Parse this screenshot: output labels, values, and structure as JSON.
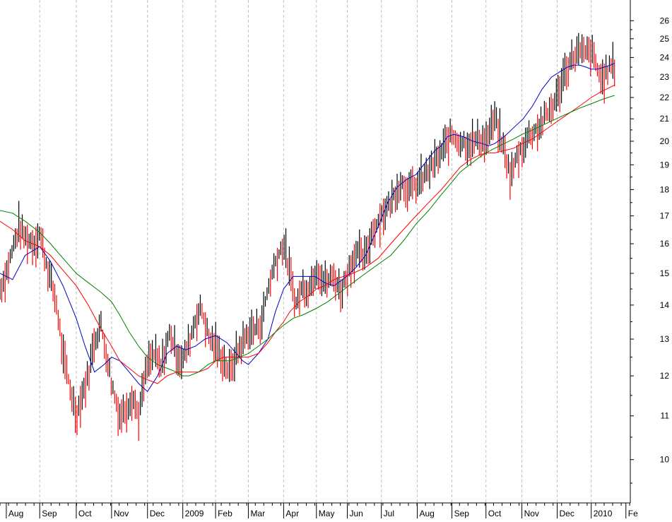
{
  "chart_data": {
    "type": "line",
    "title": "",
    "xlabel": "",
    "ylabel": "",
    "scale": "log",
    "ylim": [
      9.1,
      27.2
    ],
    "y_ticks": [
      10,
      11,
      12,
      13,
      14,
      15,
      16,
      17,
      18,
      19,
      20,
      21,
      22,
      23,
      24,
      25,
      26
    ],
    "x_ticks": [
      "Aug",
      "Sep",
      "Oct",
      "Nov",
      "Dec",
      "2009",
      "Feb",
      "Mar",
      "Apr",
      "May",
      "Jun",
      "Jul",
      "Aug",
      "Sep",
      "Oct",
      "Nov",
      "Dec",
      "2010",
      "Fe"
    ],
    "x_ticks_frac": [
      0.01,
      0.063,
      0.121,
      0.177,
      0.234,
      0.29,
      0.342,
      0.394,
      0.45,
      0.502,
      0.551,
      0.605,
      0.662,
      0.717,
      0.771,
      0.828,
      0.884,
      0.938,
      0.993
    ],
    "grid": "vertical dashed",
    "legend": "none",
    "colors": {
      "up_bar": "#000000",
      "down_bar": "#ff0000",
      "ma_short": "#0000cc",
      "ma_mid": "#ff0000",
      "ma_long": "#008000",
      "grid": "#c0c0c0"
    },
    "series": [
      {
        "kind": "price-close",
        "color": "#000000",
        "x": [
          0.0,
          0.01,
          0.02,
          0.03,
          0.04,
          0.055,
          0.063,
          0.075,
          0.09,
          0.1,
          0.11,
          0.121,
          0.13,
          0.14,
          0.15,
          0.16,
          0.17,
          0.177,
          0.19,
          0.2,
          0.21,
          0.22,
          0.234,
          0.245,
          0.255,
          0.27,
          0.28,
          0.29,
          0.3,
          0.31,
          0.32,
          0.33,
          0.342,
          0.355,
          0.365,
          0.375,
          0.385,
          0.394,
          0.405,
          0.415,
          0.425,
          0.437,
          0.45,
          0.46,
          0.47,
          0.48,
          0.49,
          0.502,
          0.515,
          0.53,
          0.541,
          0.551,
          0.565,
          0.58,
          0.59,
          0.605,
          0.62,
          0.635,
          0.65,
          0.662,
          0.675,
          0.69,
          0.7,
          0.71,
          0.717,
          0.73,
          0.745,
          0.76,
          0.771,
          0.785,
          0.8,
          0.81,
          0.82,
          0.828,
          0.84,
          0.855,
          0.87,
          0.884,
          0.895,
          0.905,
          0.915,
          0.925,
          0.938,
          0.948,
          0.955,
          0.965,
          0.97,
          0.975
        ],
        "values": [
          14.5,
          15.0,
          15.8,
          16.6,
          16.2,
          16.0,
          16.4,
          15.2,
          14.0,
          12.5,
          11.8,
          11.0,
          11.5,
          12.0,
          13.0,
          13.4,
          12.5,
          11.8,
          11.0,
          11.2,
          11.5,
          11.0,
          12.3,
          12.6,
          12.2,
          13.2,
          12.6,
          12.4,
          12.9,
          13.6,
          13.9,
          13.1,
          12.8,
          12.4,
          12.1,
          12.6,
          12.9,
          13.2,
          13.3,
          13.5,
          14.5,
          15.4,
          16.0,
          15.0,
          14.0,
          14.6,
          14.5,
          15.2,
          14.7,
          14.9,
          14.4,
          15.0,
          15.7,
          15.5,
          16.4,
          17.0,
          17.5,
          18.3,
          18.0,
          18.2,
          18.6,
          19.1,
          19.5,
          20.0,
          20.3,
          20.0,
          19.9,
          20.1,
          20.0,
          21.0,
          19.6,
          18.5,
          19.3,
          19.7,
          20.3,
          20.6,
          21.3,
          22.0,
          23.2,
          23.8,
          24.3,
          24.2,
          24.3,
          23.4,
          22.8,
          23.4,
          23.6,
          23.5
        ]
      },
      {
        "kind": "moving-average-short",
        "color": "#0000cc",
        "x": [
          0.0,
          0.02,
          0.04,
          0.063,
          0.08,
          0.1,
          0.121,
          0.135,
          0.15,
          0.165,
          0.177,
          0.19,
          0.21,
          0.22,
          0.234,
          0.25,
          0.265,
          0.28,
          0.295,
          0.31,
          0.325,
          0.342,
          0.36,
          0.375,
          0.385,
          0.394,
          0.41,
          0.425,
          0.437,
          0.45,
          0.465,
          0.48,
          0.5,
          0.515,
          0.53,
          0.55,
          0.565,
          0.58,
          0.6,
          0.615,
          0.63,
          0.645,
          0.66,
          0.675,
          0.69,
          0.7,
          0.71,
          0.72,
          0.735,
          0.75,
          0.765,
          0.775,
          0.785,
          0.8,
          0.815,
          0.83,
          0.845,
          0.86,
          0.875,
          0.89,
          0.9,
          0.91,
          0.92,
          0.93,
          0.938,
          0.948,
          0.958,
          0.968,
          0.975
        ],
        "values": [
          15.0,
          14.8,
          15.6,
          15.9,
          15.4,
          14.6,
          13.6,
          12.8,
          12.1,
          12.3,
          12.5,
          12.4,
          12.0,
          11.8,
          11.6,
          12.0,
          12.6,
          12.8,
          12.7,
          12.8,
          13.0,
          13.1,
          12.9,
          12.6,
          12.4,
          12.3,
          12.6,
          13.0,
          13.8,
          14.5,
          14.9,
          14.9,
          14.9,
          14.7,
          14.6,
          14.9,
          15.2,
          15.6,
          16.6,
          17.5,
          18.1,
          18.4,
          18.6,
          19.1,
          19.6,
          19.8,
          20.2,
          20.3,
          20.2,
          20.0,
          19.9,
          19.8,
          19.9,
          20.2,
          20.6,
          21.0,
          21.6,
          22.4,
          23.0,
          23.3,
          23.5,
          23.6,
          23.6,
          23.5,
          23.4,
          23.4,
          23.5,
          23.6,
          23.7
        ]
      },
      {
        "kind": "moving-average-mid",
        "color": "#ff0000",
        "x": [
          0.0,
          0.02,
          0.04,
          0.063,
          0.08,
          0.1,
          0.121,
          0.14,
          0.16,
          0.177,
          0.19,
          0.205,
          0.22,
          0.234,
          0.25,
          0.265,
          0.28,
          0.29,
          0.3,
          0.315,
          0.33,
          0.342,
          0.355,
          0.365,
          0.38,
          0.394,
          0.41,
          0.425,
          0.437,
          0.45,
          0.46,
          0.475,
          0.49,
          0.502,
          0.515,
          0.53,
          0.545,
          0.56,
          0.58,
          0.6,
          0.62,
          0.64,
          0.66,
          0.68,
          0.7,
          0.717,
          0.73,
          0.745,
          0.76,
          0.771,
          0.785,
          0.8,
          0.815,
          0.828,
          0.845,
          0.86,
          0.875,
          0.89,
          0.905,
          0.92,
          0.938,
          0.955,
          0.975
        ],
        "values": [
          16.8,
          16.5,
          16.1,
          15.9,
          15.6,
          15.1,
          14.6,
          14.0,
          13.3,
          12.8,
          12.4,
          12.2,
          12.0,
          11.9,
          11.8,
          12.0,
          12.1,
          12.1,
          12.1,
          12.1,
          12.2,
          12.4,
          12.5,
          12.5,
          12.5,
          12.5,
          12.6,
          12.9,
          13.2,
          13.5,
          13.8,
          14.1,
          14.3,
          14.5,
          14.6,
          14.8,
          14.9,
          15.0,
          15.2,
          15.5,
          16.0,
          16.5,
          17.0,
          17.5,
          18.0,
          18.5,
          18.9,
          19.2,
          19.4,
          19.5,
          19.5,
          19.6,
          19.7,
          19.9,
          20.1,
          20.4,
          20.7,
          21.0,
          21.3,
          21.6,
          22.0,
          22.3,
          22.6
        ]
      },
      {
        "kind": "moving-average-long",
        "color": "#008000",
        "x": [
          0.0,
          0.02,
          0.04,
          0.063,
          0.08,
          0.1,
          0.121,
          0.14,
          0.16,
          0.177,
          0.19,
          0.205,
          0.22,
          0.234,
          0.25,
          0.265,
          0.28,
          0.29,
          0.3,
          0.315,
          0.33,
          0.342,
          0.355,
          0.365,
          0.38,
          0.394,
          0.41,
          0.425,
          0.437,
          0.45,
          0.465,
          0.48,
          0.502,
          0.52,
          0.54,
          0.56,
          0.58,
          0.6,
          0.62,
          0.64,
          0.66,
          0.68,
          0.7,
          0.717,
          0.73,
          0.745,
          0.76,
          0.771,
          0.785,
          0.8,
          0.815,
          0.828,
          0.845,
          0.86,
          0.875,
          0.89,
          0.905,
          0.92,
          0.938,
          0.955,
          0.975
        ],
        "values": [
          17.2,
          17.1,
          16.8,
          16.4,
          16.0,
          15.5,
          15.0,
          14.7,
          14.4,
          14.1,
          13.7,
          13.2,
          12.8,
          12.5,
          12.3,
          12.2,
          12.1,
          12.0,
          12.0,
          12.1,
          12.3,
          12.4,
          12.4,
          12.4,
          12.5,
          12.6,
          12.8,
          13.0,
          13.2,
          13.4,
          13.6,
          13.7,
          13.9,
          14.1,
          14.4,
          14.7,
          15.0,
          15.3,
          15.6,
          16.1,
          16.7,
          17.2,
          17.8,
          18.3,
          18.7,
          19.0,
          19.3,
          19.5,
          19.7,
          19.9,
          20.1,
          20.3,
          20.5,
          20.7,
          20.9,
          21.1,
          21.3,
          21.5,
          21.7,
          21.9,
          22.1
        ]
      }
    ]
  }
}
